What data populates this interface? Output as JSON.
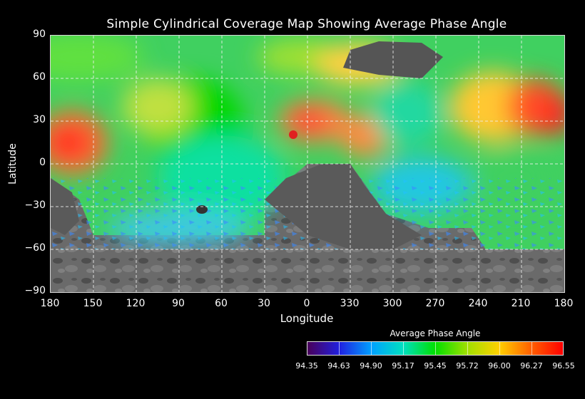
{
  "chart_data": {
    "type": "heatmap",
    "title": "Simple Cylindrical Coverage Map Showing Average Phase Angle",
    "xlabel": "Longitude",
    "ylabel": "Latitude",
    "x_tick_labels": [
      "180",
      "150",
      "120",
      "90",
      "60",
      "30",
      "0",
      "330",
      "300",
      "270",
      "240",
      "210",
      "180"
    ],
    "y_tick_labels": [
      "90",
      "60",
      "30",
      "0",
      "−30",
      "−60",
      "−90"
    ],
    "ylim": [
      -90,
      90
    ],
    "grid": true,
    "colorbar": {
      "title": "Average Phase Angle",
      "tick_labels": [
        "94.35",
        "94.63",
        "94.90",
        "95.17",
        "95.45",
        "95.72",
        "96.00",
        "96.27",
        "96.55"
      ],
      "range": [
        94.35,
        96.55
      ],
      "colors": [
        "#4a005a",
        "#2020e0",
        "#00a0ff",
        "#00e0c0",
        "#00e000",
        "#a0e000",
        "#ffd000",
        "#ff6000",
        "#ff0000"
      ]
    }
  }
}
